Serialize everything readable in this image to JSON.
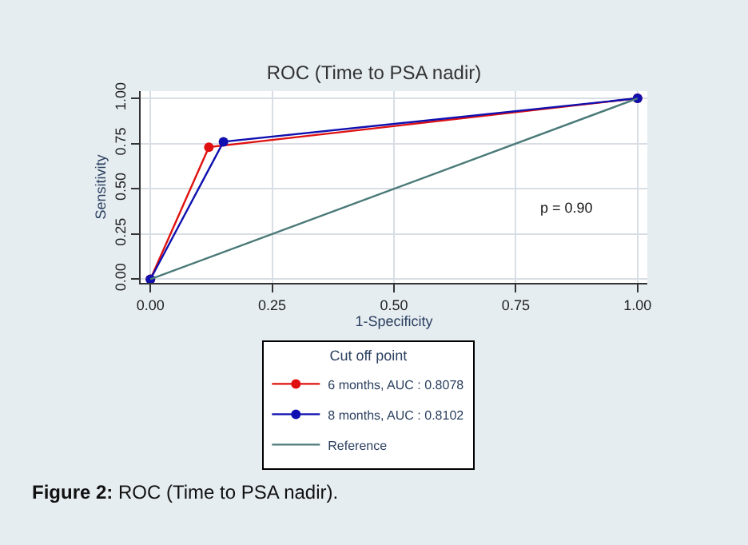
{
  "chart_data": {
    "type": "line",
    "title": "ROC (Time to PSA nadir)",
    "xlabel": "1-Specificity",
    "ylabel": "Sensitivity",
    "legend_title": "Cut off point",
    "series": [
      {
        "name": "6 months, AUC : 0.8078",
        "color": "#e01010",
        "x": [
          0,
          0.12,
          1
        ],
        "values": [
          0,
          0.73,
          1
        ],
        "marker": "circle"
      },
      {
        "name": "8 months, AUC : 0.8102",
        "color": "#1010b0",
        "x": [
          0,
          0.15,
          1
        ],
        "values": [
          0,
          0.76,
          1
        ],
        "marker": "circle"
      },
      {
        "name": "Reference",
        "color": "#4a7a78",
        "x": [
          0,
          1
        ],
        "values": [
          0,
          1
        ],
        "marker": "none"
      }
    ],
    "xlim": [
      -0.02,
      1.02
    ],
    "ylim": [
      -0.02,
      1.04
    ],
    "xticks": [
      {
        "value": 0,
        "label": "0.00"
      },
      0.25,
      {
        "value": 0.5,
        "label": "0.50"
      },
      0.75,
      {
        "value": 1,
        "label": "1.00"
      }
    ],
    "yticks": [
      {
        "value": 0,
        "label": "0.00"
      },
      0.25,
      {
        "value": 0.5,
        "label": "0.50"
      },
      0.75,
      {
        "value": 1,
        "label": "1.00"
      }
    ],
    "annotations": [
      "p = 0.90",
      "Figure 2: ROC (Time to PSA nadir)."
    ],
    "grid": true,
    "legend": "bottom",
    "line_style": "solid"
  }
}
